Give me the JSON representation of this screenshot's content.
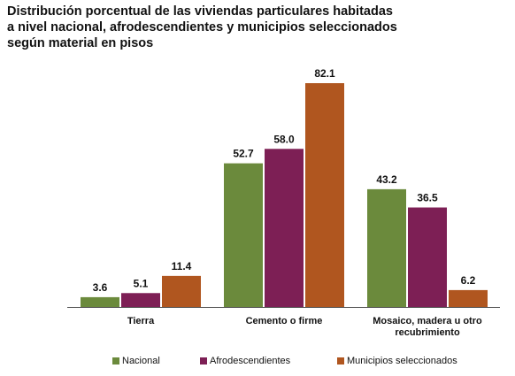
{
  "chart_data": {
    "type": "bar",
    "title_lines": [
      "Distribución porcentual de las viviendas particulares habitadas",
      "a nivel nacional, afrodescendientes y municipios seleccionados",
      "según material en pisos"
    ],
    "categories": [
      [
        "Tierra"
      ],
      [
        "Cemento o firme"
      ],
      [
        "Mosaico, madera u otro",
        "recubrimiento"
      ]
    ],
    "series": [
      {
        "name": "Nacional",
        "color": "#6b8a3c",
        "values": [
          3.6,
          52.7,
          43.2
        ]
      },
      {
        "name": "Afrodescendientes",
        "color": "#7d1f55",
        "values": [
          5.1,
          58.0,
          36.5
        ]
      },
      {
        "name": "Municipios seleccionados",
        "color": "#b0561f",
        "values": [
          11.4,
          82.1,
          6.2
        ]
      }
    ],
    "ylim": [
      0,
      100
    ],
    "grid": false,
    "legend_position": "bottom",
    "data_labels": true
  }
}
